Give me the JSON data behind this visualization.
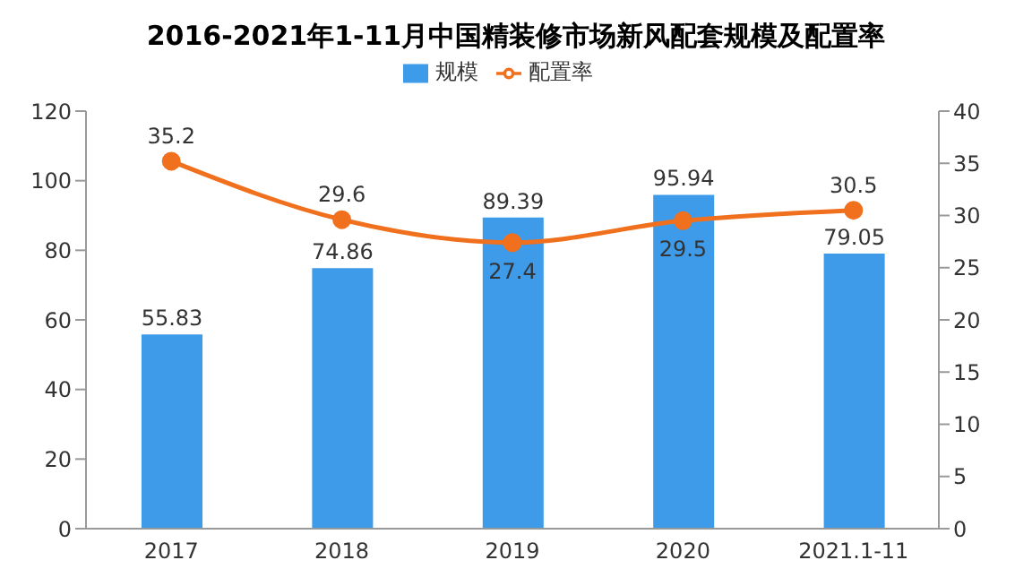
{
  "chart_data": {
    "type": "bar",
    "title": "2016-2021年1-11月中国精装修市场新风配套规模及配置率",
    "categories": [
      "2017",
      "2018",
      "2019",
      "2020",
      "2021.1-11"
    ],
    "series": [
      {
        "name": "规模",
        "color": "#3d9be9",
        "values": [
          55.83,
          74.86,
          89.39,
          95.94,
          79.05
        ]
      },
      {
        "name": "配置率",
        "type": "line",
        "axis": "y2",
        "color": "#f0701e",
        "values": [
          35.2,
          29.6,
          27.4,
          29.5,
          30.5
        ]
      }
    ],
    "ylim": [
      0,
      120
    ],
    "yticks": [
      0,
      20,
      40,
      60,
      80,
      100,
      120
    ],
    "y2lim": [
      0,
      40
    ],
    "y2ticks": [
      0,
      5,
      10,
      15,
      20,
      25,
      30,
      35,
      40
    ],
    "grid": false,
    "legend": "top",
    "marker": "circle",
    "line_style": "solid",
    "data_labels": true
  }
}
